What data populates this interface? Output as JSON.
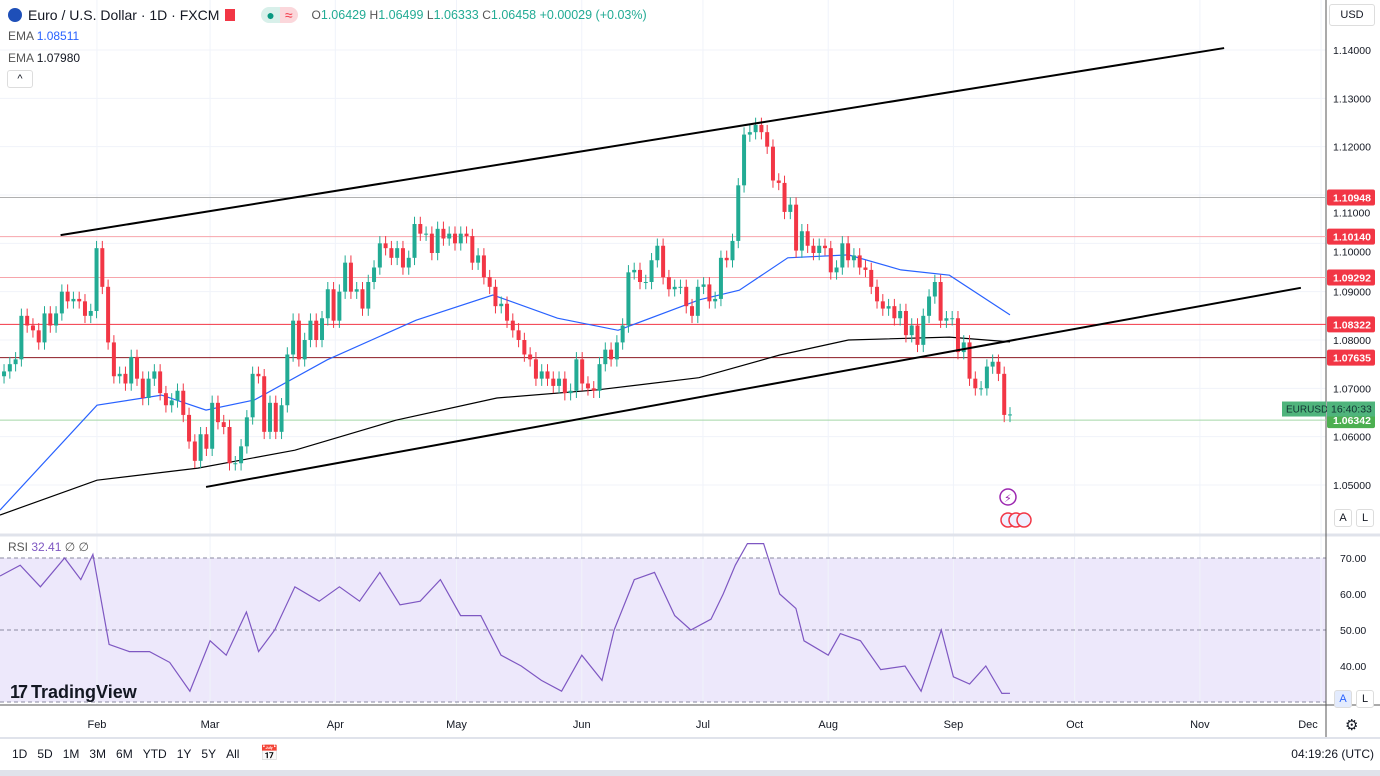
{
  "header": {
    "symbol": "Euro / U.S. Dollar · 1D · FXCM",
    "open_label": "O",
    "open": "1.06429",
    "high_label": "H",
    "high": "1.06499",
    "low_label": "L",
    "low": "1.06333",
    "close_label": "C",
    "close": "1.06458",
    "change": "+0.00029 (+0.03%)",
    "ema1_label": "EMA",
    "ema1_value": "1.08511",
    "ema2_label": "EMA",
    "ema2_value": "1.07980",
    "collapse_icon": "chevron-up-icon",
    "currency": "USD"
  },
  "colors": {
    "up": "#22ab94",
    "down": "#f23645",
    "ema50": "#2962ff",
    "ema200": "#000000",
    "rsi": "#7e57c2",
    "rsi_band": "#ede8fb"
  },
  "price_axis": {
    "ticks": [
      "1.05000",
      "1.06000",
      "1.07000",
      "1.08000",
      "1.09000",
      "1.10000",
      "1.11000",
      "1.12000",
      "1.13000",
      "1.14000"
    ],
    "levels": [
      {
        "value": "1.10948",
        "color": "#b0b0b0",
        "label_color": "#f23645"
      },
      {
        "value": "1.10140",
        "color": "#f7a5ab",
        "label_color": "#f23645"
      },
      {
        "value": "1.09292",
        "color": "#f7a5ab",
        "label_color": "#f23645"
      },
      {
        "value": "1.08322",
        "color": "#f23645",
        "label_color": "#f23645"
      },
      {
        "value": "1.07635",
        "color": "#8b1a22",
        "label_color": "#f23645"
      },
      {
        "value": "1.06342",
        "color": "#a5d6a7",
        "label_color": "#4caf50"
      }
    ],
    "last_symbol": "EURUSD",
    "countdown": "16:40:33",
    "last_price": 1.06458
  },
  "rsi": {
    "label": "RSI",
    "value": "32.41",
    "extra1": "∅",
    "extra2": "∅",
    "ticks": [
      "40.00",
      "50.00",
      "60.00",
      "70.00"
    ],
    "upper": 70,
    "lower": 30
  },
  "time_axis": {
    "labels": [
      "Feb",
      "Mar",
      "Apr",
      "May",
      "Jun",
      "Jul",
      "Aug",
      "Sep",
      "Oct",
      "Nov",
      "Dec"
    ]
  },
  "bottom_bar": {
    "ranges": [
      "1D",
      "5D",
      "1M",
      "3M",
      "6M",
      "YTD",
      "1Y",
      "5Y",
      "All"
    ],
    "clock": "04:19:26 (UTC)"
  },
  "scale_buttons": {
    "auto": "A",
    "log": "L"
  },
  "brand": "TradingView",
  "chart_data": {
    "type": "candlestick",
    "title": "Euro / U.S. Dollar · 1D · FXCM",
    "first_date": "2023-01-09",
    "last_date": "2023-09-15",
    "closes": [
      1.0735,
      1.075,
      1.076,
      1.085,
      1.083,
      1.082,
      1.0795,
      1.0855,
      1.083,
      1.0855,
      1.09,
      1.088,
      1.0885,
      1.088,
      1.085,
      1.086,
      1.099,
      1.091,
      1.0795,
      1.0725,
      1.073,
      1.071,
      1.0765,
      1.072,
      1.068,
      1.072,
      1.0735,
      1.069,
      1.0665,
      1.0675,
      1.0695,
      1.0645,
      1.059,
      1.055,
      1.0605,
      1.0575,
      1.067,
      1.063,
      1.062,
      1.0545,
      1.0545,
      1.058,
      1.064,
      1.073,
      1.0725,
      1.061,
      1.067,
      1.061,
      1.0665,
      1.077,
      1.084,
      1.076,
      1.08,
      1.084,
      1.08,
      1.0845,
      1.0905,
      1.084,
      1.09,
      1.096,
      1.09,
      1.0905,
      1.0865,
      1.092,
      1.095,
      1.1,
      1.099,
      1.097,
      1.099,
      1.095,
      1.097,
      1.104,
      1.102,
      1.102,
      1.098,
      1.103,
      1.101,
      1.102,
      1.1,
      1.102,
      1.1015,
      1.096,
      1.0975,
      1.093,
      1.091,
      1.087,
      1.0875,
      1.084,
      1.082,
      1.08,
      1.077,
      1.076,
      1.072,
      1.0735,
      1.072,
      1.0705,
      1.072,
      1.069,
      1.0695,
      1.076,
      1.071,
      1.07,
      1.0695,
      1.075,
      1.078,
      1.076,
      1.0795,
      1.083,
      1.094,
      1.0945,
      1.092,
      1.092,
      1.0965,
      1.0995,
      1.093,
      1.0905,
      1.091,
      1.091,
      1.087,
      1.085,
      1.091,
      1.0915,
      1.088,
      1.0885,
      1.097,
      1.0965,
      1.1005,
      1.112,
      1.1225,
      1.123,
      1.1245,
      1.123,
      1.12,
      1.113,
      1.1125,
      1.1065,
      1.108,
      1.0985,
      1.1025,
      1.0995,
      1.098,
      1.0995,
      1.099,
      1.094,
      1.095,
      1.1,
      1.0965,
      1.0975,
      1.095,
      1.0945,
      1.091,
      1.088,
      1.0865,
      1.087,
      1.0845,
      1.086,
      1.081,
      1.083,
      1.079,
      1.085,
      1.089,
      1.092,
      1.084,
      1.0845,
      1.0845,
      1.0775,
      1.0795,
      1.072,
      1.07,
      1.07,
      1.0745,
      1.0755,
      1.073,
      1.0645,
      1.0646
    ],
    "ema50": [
      [
        "2023-01-08",
        1.0448
      ],
      [
        "2023-02-01",
        1.0665
      ],
      [
        "2023-02-17",
        1.0686
      ],
      [
        "2023-02-28",
        1.0655
      ],
      [
        "2023-03-12",
        1.0676
      ],
      [
        "2023-03-30",
        1.0759
      ],
      [
        "2023-04-21",
        1.0841
      ],
      [
        "2023-05-10",
        1.0893
      ],
      [
        "2023-05-26",
        1.0845
      ],
      [
        "2023-06-10",
        1.082
      ],
      [
        "2023-06-30",
        1.0883
      ],
      [
        "2023-07-10",
        1.0903
      ],
      [
        "2023-07-22",
        1.097
      ],
      [
        "2023-08-06",
        1.0976
      ],
      [
        "2023-08-19",
        1.0945
      ],
      [
        "2023-08-31",
        1.0934
      ],
      [
        "2023-09-15",
        1.0852
      ]
    ],
    "ema200": [
      [
        "2023-01-08",
        1.0438
      ],
      [
        "2023-02-01",
        1.051
      ],
      [
        "2023-02-26",
        1.0535
      ],
      [
        "2023-03-22",
        1.0572
      ],
      [
        "2023-04-16",
        1.0634
      ],
      [
        "2023-05-11",
        1.068
      ],
      [
        "2023-06-05",
        1.0697
      ],
      [
        "2023-06-30",
        1.0722
      ],
      [
        "2023-07-20",
        1.0769
      ],
      [
        "2023-08-06",
        1.08
      ],
      [
        "2023-08-31",
        1.0806
      ],
      [
        "2023-09-15",
        1.0796
      ]
    ],
    "trendlines": [
      {
        "from": [
          "2023-01-23",
          1.1017
        ],
        "to": [
          "2023-11-07",
          1.1404
        ]
      },
      {
        "from": [
          "2023-02-28",
          1.0496
        ],
        "to": [
          "2023-11-26",
          1.0908
        ]
      }
    ],
    "rsi": [
      [
        "2023-01-08",
        65
      ],
      [
        "2023-01-13",
        68
      ],
      [
        "2023-01-18",
        62
      ],
      [
        "2023-01-24",
        70
      ],
      [
        "2023-01-28",
        64
      ],
      [
        "2023-01-31",
        71
      ],
      [
        "2023-02-04",
        46
      ],
      [
        "2023-02-09",
        44
      ],
      [
        "2023-02-14",
        44
      ],
      [
        "2023-02-19",
        41
      ],
      [
        "2023-02-24",
        33
      ],
      [
        "2023-03-01",
        47
      ],
      [
        "2023-03-05",
        43
      ],
      [
        "2023-03-10",
        55
      ],
      [
        "2023-03-13",
        44
      ],
      [
        "2023-03-17",
        50
      ],
      [
        "2023-03-22",
        62
      ],
      [
        "2023-03-28",
        58
      ],
      [
        "2023-04-02",
        62
      ],
      [
        "2023-04-07",
        58
      ],
      [
        "2023-04-12",
        66
      ],
      [
        "2023-04-17",
        57
      ],
      [
        "2023-04-22",
        58
      ],
      [
        "2023-04-27",
        64
      ],
      [
        "2023-05-02",
        54
      ],
      [
        "2023-05-07",
        54
      ],
      [
        "2023-05-12",
        43
      ],
      [
        "2023-05-17",
        40
      ],
      [
        "2023-05-22",
        36
      ],
      [
        "2023-05-27",
        33
      ],
      [
        "2023-06-01",
        43
      ],
      [
        "2023-06-06",
        36
      ],
      [
        "2023-06-09",
        50
      ],
      [
        "2023-06-14",
        64
      ],
      [
        "2023-06-19",
        66
      ],
      [
        "2023-06-24",
        54
      ],
      [
        "2023-06-28",
        50
      ],
      [
        "2023-07-03",
        53
      ],
      [
        "2023-07-06",
        60
      ],
      [
        "2023-07-09",
        68
      ],
      [
        "2023-07-12",
        74
      ],
      [
        "2023-07-16",
        74
      ],
      [
        "2023-07-20",
        60
      ],
      [
        "2023-07-24",
        56
      ],
      [
        "2023-07-26",
        47
      ],
      [
        "2023-08-01",
        43
      ],
      [
        "2023-08-04",
        49
      ],
      [
        "2023-08-09",
        47
      ],
      [
        "2023-08-14",
        39
      ],
      [
        "2023-08-20",
        40
      ],
      [
        "2023-08-24",
        33
      ],
      [
        "2023-08-29",
        50
      ],
      [
        "2023-09-01",
        37
      ],
      [
        "2023-09-05",
        35
      ],
      [
        "2023-09-09",
        40
      ],
      [
        "2023-09-13",
        32.4
      ],
      [
        "2023-09-15",
        32.41
      ]
    ],
    "ylim": [
      1.04,
      1.15
    ],
    "rsi_ylim": [
      30,
      75
    ]
  }
}
